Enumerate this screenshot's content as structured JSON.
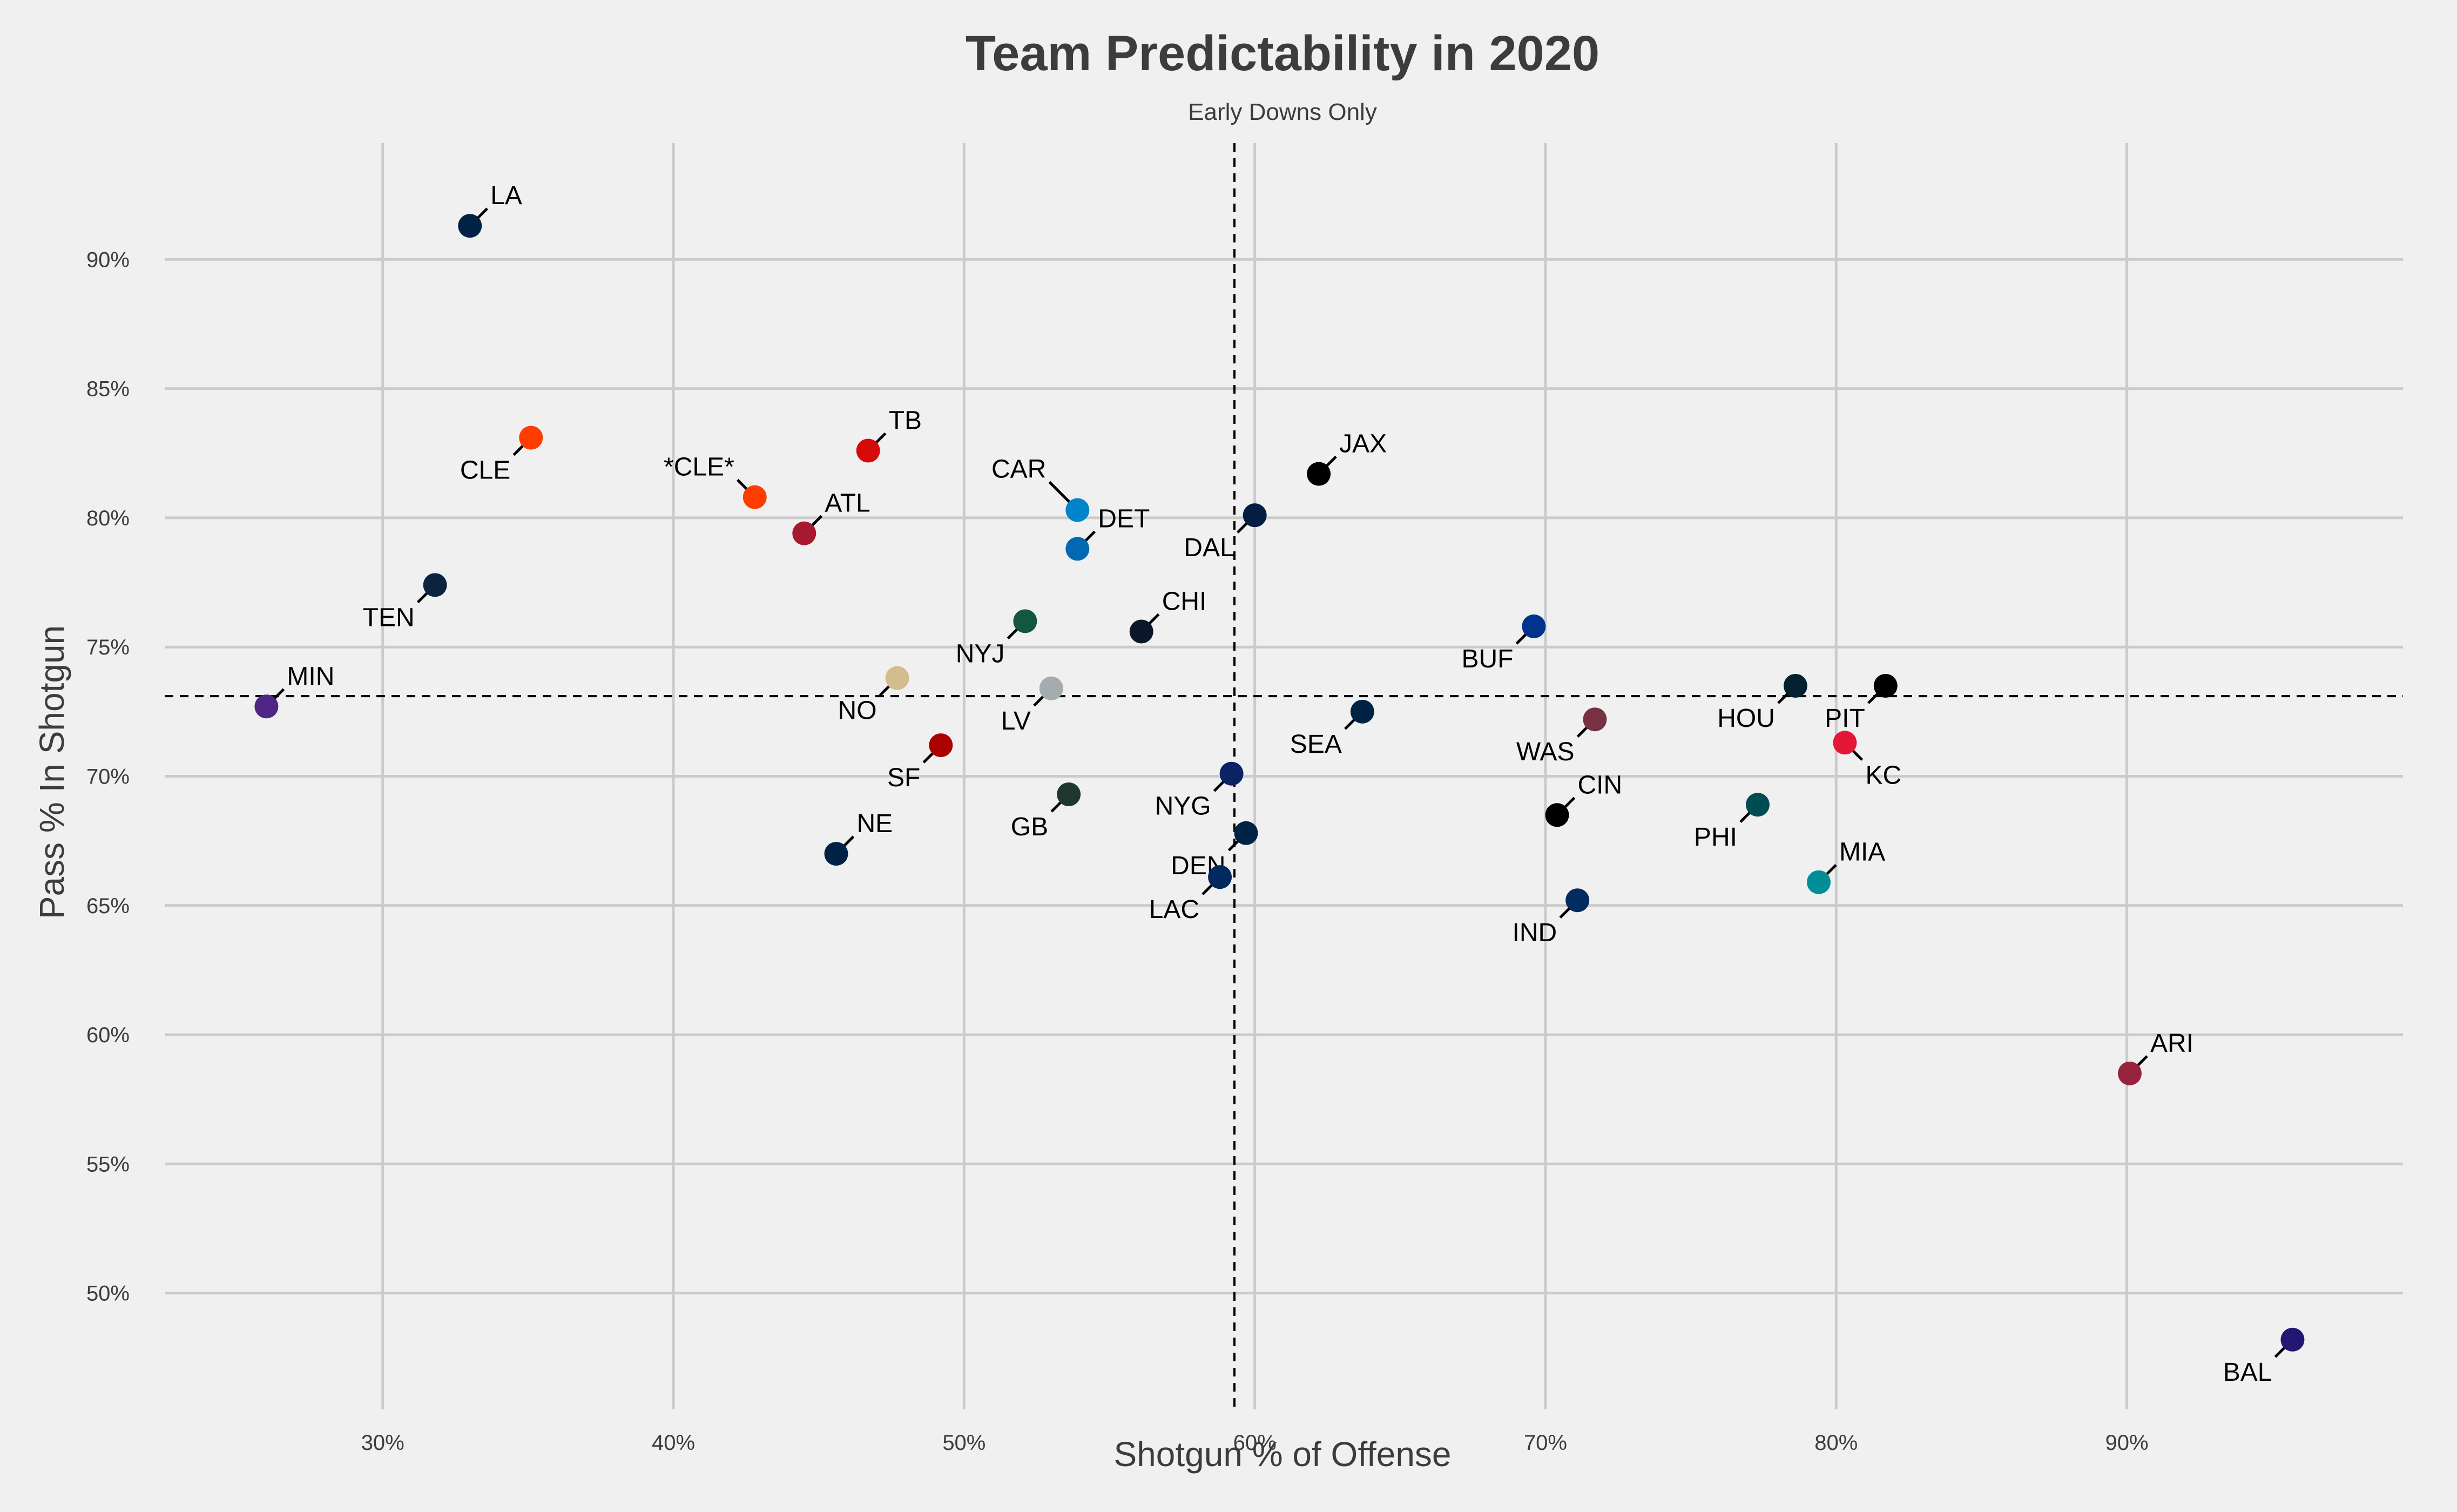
{
  "chart_data": {
    "type": "scatter",
    "title": "Team Predictability in 2020",
    "subtitle": "Early Downs Only",
    "xlabel": "Shotgun % of Offense",
    "ylabel": "Pass % In Shotgun",
    "xlim": [
      22.5,
      99.5
    ],
    "ylim": [
      45.5,
      94.5
    ],
    "x_ticks": [
      30,
      40,
      50,
      60,
      70,
      80,
      90
    ],
    "y_ticks": [
      50,
      55,
      60,
      65,
      70,
      75,
      80,
      85,
      90
    ],
    "x_tick_labels": [
      "30%",
      "40%",
      "50%",
      "60%",
      "70%",
      "80%",
      "90%"
    ],
    "y_tick_labels": [
      "50%",
      "55%",
      "60%",
      "65%",
      "70%",
      "75%",
      "80%",
      "85%",
      "90%"
    ],
    "grid": true,
    "reference_lines": {
      "x_mean": 59.3,
      "y_mean": 73.1
    },
    "points": [
      {
        "team": "LA",
        "x": 33.0,
        "y": 91.3,
        "color": "#002244",
        "dx": 1,
        "dy": 1
      },
      {
        "team": "CLE",
        "x": 35.1,
        "y": 83.1,
        "color": "#FF3C00",
        "dx": -1,
        "dy": -1
      },
      {
        "team": "*CLE*",
        "x": 42.8,
        "y": 80.8,
        "color": "#FF3C00",
        "dx": -1,
        "dy": 1
      },
      {
        "team": "TB",
        "x": 46.7,
        "y": 82.6,
        "color": "#D50A0A",
        "dx": 1,
        "dy": 1
      },
      {
        "team": "ATL",
        "x": 44.5,
        "y": 79.4,
        "color": "#A71930",
        "dx": 1,
        "dy": 1
      },
      {
        "team": "TEN",
        "x": 31.8,
        "y": 77.4,
        "color": "#0C2340",
        "dx": -1,
        "dy": -1
      },
      {
        "team": "MIN",
        "x": 26.0,
        "y": 72.7,
        "color": "#4F2683",
        "dx": 1,
        "dy": 1
      },
      {
        "team": "CAR",
        "x": 53.9,
        "y": 80.3,
        "color": "#0085CA",
        "dx": -2,
        "dy": 2
      },
      {
        "team": "DET",
        "x": 53.9,
        "y": 78.8,
        "color": "#0069B1",
        "dx": 1,
        "dy": 1
      },
      {
        "team": "NYJ",
        "x": 52.1,
        "y": 76.0,
        "color": "#125740",
        "dx": -1,
        "dy": -1
      },
      {
        "team": "CHI",
        "x": 56.1,
        "y": 75.6,
        "color": "#0B162A",
        "dx": 1,
        "dy": 1
      },
      {
        "team": "NO",
        "x": 47.7,
        "y": 73.8,
        "color": "#D3BC8D",
        "dx": -1,
        "dy": -1
      },
      {
        "team": "LV",
        "x": 53.0,
        "y": 73.4,
        "color": "#A5ACAF",
        "dx": -1,
        "dy": -1
      },
      {
        "team": "SF",
        "x": 49.2,
        "y": 71.2,
        "color": "#AA0000",
        "dx": -1,
        "dy": -1
      },
      {
        "team": "GB",
        "x": 53.6,
        "y": 69.3,
        "color": "#203731",
        "dx": -1,
        "dy": -1
      },
      {
        "team": "NE",
        "x": 45.6,
        "y": 67.0,
        "color": "#002244",
        "dx": 1,
        "dy": 1
      },
      {
        "team": "DAL",
        "x": 60.0,
        "y": 80.1,
        "color": "#041E42",
        "dx": -1,
        "dy": -1
      },
      {
        "team": "JAX",
        "x": 62.2,
        "y": 81.7,
        "color": "#000000",
        "dx": 1,
        "dy": 1
      },
      {
        "team": "NYG",
        "x": 59.2,
        "y": 70.1,
        "color": "#0B2265",
        "dx": -1,
        "dy": -1
      },
      {
        "team": "DEN",
        "x": 59.7,
        "y": 67.8,
        "color": "#002244",
        "dx": -1,
        "dy": -1
      },
      {
        "team": "LAC",
        "x": 58.8,
        "y": 66.1,
        "color": "#002A5E",
        "dx": -1,
        "dy": -1
      },
      {
        "team": "SEA",
        "x": 63.7,
        "y": 72.5,
        "color": "#002244",
        "dx": -1,
        "dy": -1
      },
      {
        "team": "BUF",
        "x": 69.6,
        "y": 75.8,
        "color": "#00338D",
        "dx": -1,
        "dy": -1
      },
      {
        "team": "WAS",
        "x": 71.7,
        "y": 72.2,
        "color": "#773141",
        "dx": -1,
        "dy": -1
      },
      {
        "team": "CIN",
        "x": 70.4,
        "y": 68.5,
        "color": "#000000",
        "dx": 1,
        "dy": 1
      },
      {
        "team": "IND",
        "x": 71.1,
        "y": 65.2,
        "color": "#002C5F",
        "dx": -1,
        "dy": -1
      },
      {
        "team": "HOU",
        "x": 78.6,
        "y": 73.5,
        "color": "#03202F",
        "dx": -1,
        "dy": -1
      },
      {
        "team": "PIT",
        "x": 81.7,
        "y": 73.5,
        "color": "#000000",
        "dx": -1,
        "dy": -1
      },
      {
        "team": "KC",
        "x": 80.3,
        "y": 71.3,
        "color": "#E31837",
        "dx": 1,
        "dy": -1
      },
      {
        "team": "PHI",
        "x": 77.3,
        "y": 68.9,
        "color": "#004C54",
        "dx": -1,
        "dy": -1
      },
      {
        "team": "MIA",
        "x": 79.4,
        "y": 65.9,
        "color": "#008E97",
        "dx": 1,
        "dy": 1
      },
      {
        "team": "ARI",
        "x": 90.1,
        "y": 58.5,
        "color": "#97233F",
        "dx": 1,
        "dy": 1
      },
      {
        "team": "BAL",
        "x": 95.7,
        "y": 48.2,
        "color": "#241773",
        "dx": -1,
        "dy": -1
      }
    ]
  }
}
